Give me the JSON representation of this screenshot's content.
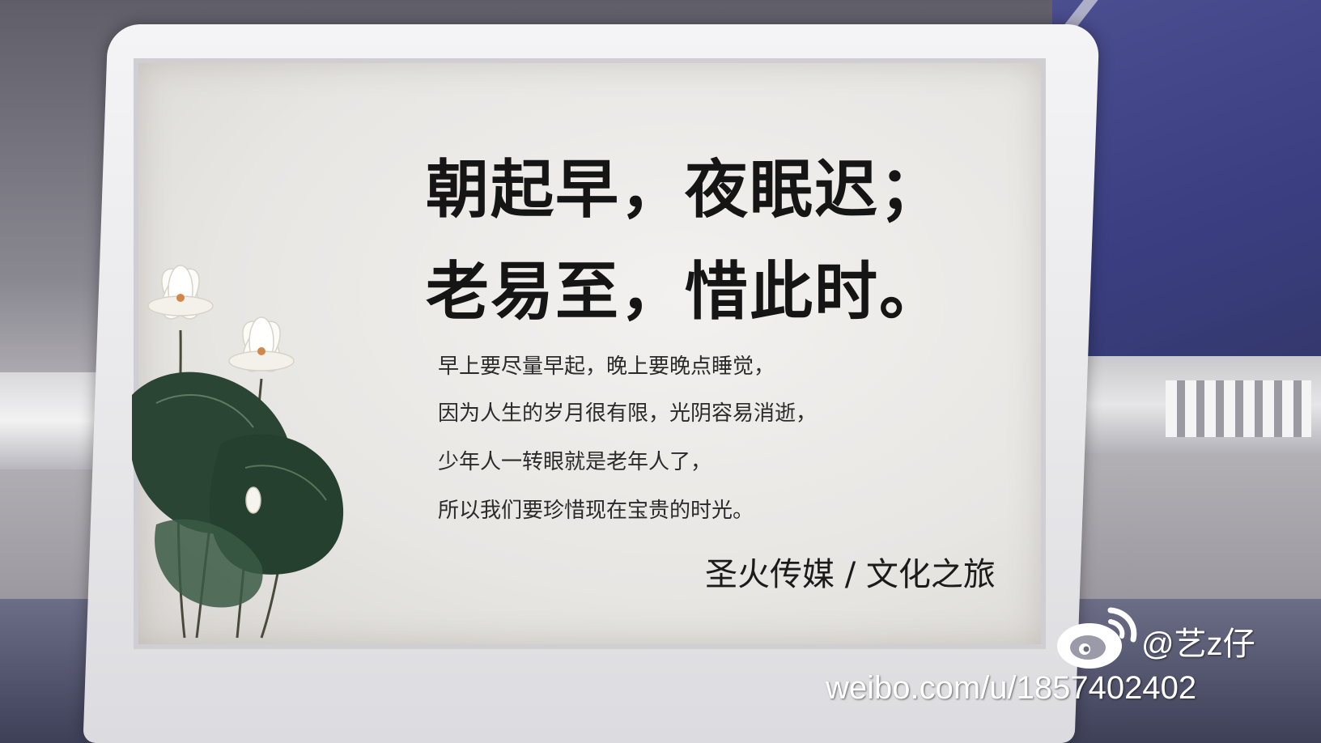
{
  "sign": {
    "title_line_1": "朝起早，夜眠迟；",
    "title_line_2": "老易至，惜此时。",
    "body_lines": [
      "早上要尽量早起，晚上要晚点睡觉，",
      "因为人生的岁月很有限，光阴容易消逝，",
      "少年人一转眼就是老年人了，",
      "所以我们要珍惜现在宝贵的时光。"
    ],
    "publisher": "圣火传媒 / 文化之旅",
    "illustration": "lotus-flowers-and-leaves"
  },
  "watermark": {
    "handle": "@艺z仔",
    "url": "weibo.com/u/1857402402",
    "logo_icon": "weibo-logo-icon"
  },
  "colors": {
    "card_background": "#ebe9e6",
    "text": "#151515",
    "leaf_green": "#2f4a3a",
    "holder_plastic": "#ececef"
  }
}
